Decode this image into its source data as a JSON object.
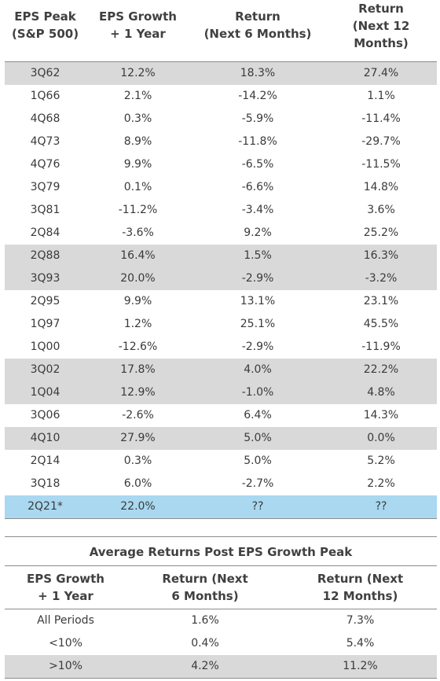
{
  "table1": {
    "headers": [
      "EPS Peak\n(S&P 500)",
      "EPS Growth\n+ 1 Year",
      "Return\n(Next 6 Months)",
      "Return\n(Next 12\nMonths)"
    ],
    "rows": [
      {
        "period": "3Q62",
        "growth": "12.2%",
        "ret6": "18.3%",
        "ret12": "27.4%",
        "style": "shade"
      },
      {
        "period": "1Q66",
        "growth": "2.1%",
        "ret6": "-14.2%",
        "ret12": "1.1%",
        "style": ""
      },
      {
        "period": "4Q68",
        "growth": "0.3%",
        "ret6": "-5.9%",
        "ret12": "-11.4%",
        "style": ""
      },
      {
        "period": "4Q73",
        "growth": "8.9%",
        "ret6": "-11.8%",
        "ret12": "-29.7%",
        "style": ""
      },
      {
        "period": "4Q76",
        "growth": "9.9%",
        "ret6": "-6.5%",
        "ret12": "-11.5%",
        "style": ""
      },
      {
        "period": "3Q79",
        "growth": "0.1%",
        "ret6": "-6.6%",
        "ret12": "14.8%",
        "style": ""
      },
      {
        "period": "3Q81",
        "growth": "-11.2%",
        "ret6": "-3.4%",
        "ret12": "3.6%",
        "style": ""
      },
      {
        "period": "2Q84",
        "growth": "-3.6%",
        "ret6": "9.2%",
        "ret12": "25.2%",
        "style": ""
      },
      {
        "period": "2Q88",
        "growth": "16.4%",
        "ret6": "1.5%",
        "ret12": "16.3%",
        "style": "shade"
      },
      {
        "period": "3Q93",
        "growth": "20.0%",
        "ret6": "-2.9%",
        "ret12": "-3.2%",
        "style": "shade"
      },
      {
        "period": "2Q95",
        "growth": "9.9%",
        "ret6": "13.1%",
        "ret12": "23.1%",
        "style": ""
      },
      {
        "period": "1Q97",
        "growth": "1.2%",
        "ret6": "25.1%",
        "ret12": "45.5%",
        "style": ""
      },
      {
        "period": "1Q00",
        "growth": "-12.6%",
        "ret6": "-2.9%",
        "ret12": "-11.9%",
        "style": ""
      },
      {
        "period": "3Q02",
        "growth": "17.8%",
        "ret6": "4.0%",
        "ret12": "22.2%",
        "style": "shade"
      },
      {
        "period": "1Q04",
        "growth": "12.9%",
        "ret6": "-1.0%",
        "ret12": "4.8%",
        "style": "shade"
      },
      {
        "period": "3Q06",
        "growth": "-2.6%",
        "ret6": "6.4%",
        "ret12": "14.3%",
        "style": ""
      },
      {
        "period": "4Q10",
        "growth": "27.9%",
        "ret6": "5.0%",
        "ret12": "0.0%",
        "style": "shade"
      },
      {
        "period": "2Q14",
        "growth": "0.3%",
        "ret6": "5.0%",
        "ret12": "5.2%",
        "style": ""
      },
      {
        "period": "3Q18",
        "growth": "6.0%",
        "ret6": "-2.7%",
        "ret12": "2.2%",
        "style": ""
      },
      {
        "period": "2Q21*",
        "growth": "22.0%",
        "ret6": "??",
        "ret12": "??",
        "style": "highlight"
      }
    ]
  },
  "table2": {
    "title": "Average Returns Post EPS Growth Peak",
    "headers": [
      "EPS Growth\n+ 1 Year",
      "Return (Next\n6 Months)",
      "Return (Next\n12 Months)"
    ],
    "rows": [
      {
        "label": "All Periods",
        "ret6": "1.6%",
        "ret12": "7.3%",
        "style": ""
      },
      {
        "label": "<10%",
        "ret6": "0.4%",
        "ret12": "5.4%",
        "style": ""
      },
      {
        "label": ">10%",
        "ret6": "4.2%",
        "ret12": "11.2%",
        "style": "shade"
      }
    ]
  },
  "colors": {
    "shade": "#d9d9d9",
    "highlight": "#a9d8f0",
    "rule": "#8c8c8c",
    "text": "#3a3a3a"
  }
}
